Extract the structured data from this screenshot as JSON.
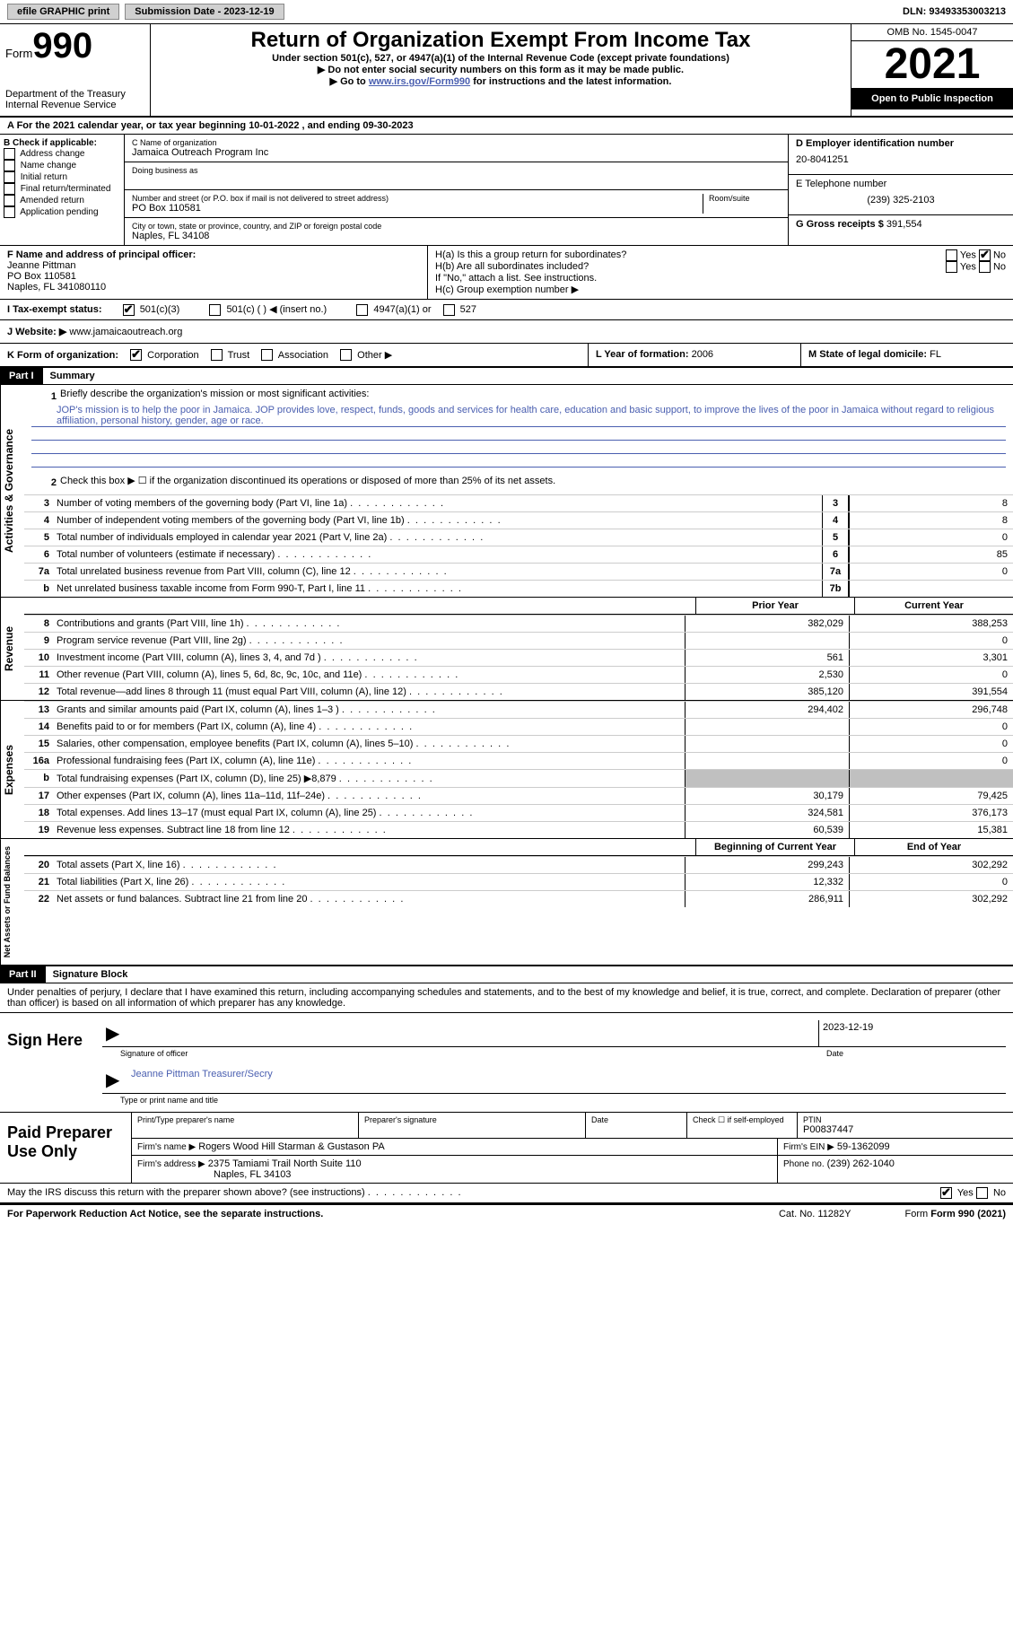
{
  "topbar": {
    "efile": "efile GRAPHIC print",
    "sub_date_label": "Submission Date - 2023-12-19",
    "dln": "DLN: 93493353003213"
  },
  "header": {
    "form_label": "Form",
    "form_num": "990",
    "title": "Return of Organization Exempt From Income Tax",
    "subtitle": "Under section 501(c), 527, or 4947(a)(1) of the Internal Revenue Code (except private foundations)",
    "instr1": "▶ Do not enter social security numbers on this form as it may be made public.",
    "instr2_pre": "▶ Go to ",
    "instr2_link": "www.irs.gov/Form990",
    "instr2_post": " for instructions and the latest information.",
    "dept": "Department of the Treasury\nInternal Revenue Service",
    "omb": "OMB No. 1545-0047",
    "year": "2021",
    "inspect": "Open to Public Inspection"
  },
  "sectionA": {
    "text": "A For the 2021 calendar year, or tax year beginning 10-01-2022   , and ending 09-30-2023"
  },
  "sectionB": {
    "heading": "B Check if applicable:",
    "items": [
      "Address change",
      "Name change",
      "Initial return",
      "Final return/terminated",
      "Amended return",
      "Application pending"
    ]
  },
  "sectionC": {
    "name_label": "C Name of organization",
    "name": "Jamaica Outreach Program Inc",
    "dba_label": "Doing business as",
    "street_label": "Number and street (or P.O. box if mail is not delivered to street address)",
    "room_label": "Room/suite",
    "street": "PO Box 110581",
    "city_label": "City or town, state or province, country, and ZIP or foreign postal code",
    "city": "Naples, FL  34108"
  },
  "sectionD": {
    "label": "D Employer identification number",
    "ein": "20-8041251",
    "phone_label": "E Telephone number",
    "phone": "(239) 325-2103",
    "gross_label": "G Gross receipts $",
    "gross": "391,554"
  },
  "sectionF": {
    "label": "F  Name and address of principal officer:",
    "name": "Jeanne Pittman",
    "street": "PO Box 110581",
    "city": "Naples, FL  341080110"
  },
  "sectionH": {
    "ha": "H(a)  Is this a group return for subordinates?",
    "hb": "H(b)  Are all subordinates included?",
    "hb_note": "If \"No,\" attach a list. See instructions.",
    "hc": "H(c)  Group exemption number ▶",
    "yes": "Yes",
    "no": "No"
  },
  "sectionI": {
    "label": "I   Tax-exempt status:",
    "opts": [
      "501(c)(3)",
      "501(c) (  ) ◀ (insert no.)",
      "4947(a)(1) or",
      "527"
    ]
  },
  "sectionJ": {
    "label": "J  Website: ▶",
    "url": "  www.jamaicaoutreach.org"
  },
  "sectionK": {
    "label": "K Form of organization:",
    "opts": [
      "Corporation",
      "Trust",
      "Association",
      "Other ▶"
    ],
    "l_label": "L Year of formation:",
    "l_val": "2006",
    "m_label": "M State of legal domicile:",
    "m_val": "FL"
  },
  "part1": {
    "header": "Part I",
    "title": "Summary",
    "line1": "Briefly describe the organization's mission or most significant activities:",
    "mission": "JOP's mission is to help the poor in Jamaica. JOP provides love, respect, funds, goods and services for health care, education and basic support, to improve the lives of the poor in Jamaica without regard to religious affiliation, personal history, gender, age or race.",
    "line2": "Check this box ▶ ☐  if the organization discontinued its operations or disposed of more than 25% of its net assets.",
    "side_act": "Activities & Governance",
    "side_rev": "Revenue",
    "side_exp": "Expenses",
    "side_net": "Net Assets or Fund Balances",
    "prior_year": "Prior Year",
    "current_year": "Current Year",
    "beg_year": "Beginning of Current Year",
    "end_year": "End of Year",
    "lines_gov": [
      {
        "n": "3",
        "d": "Number of voting members of the governing body (Part VI, line 1a)",
        "box": "3",
        "v": "8"
      },
      {
        "n": "4",
        "d": "Number of independent voting members of the governing body (Part VI, line 1b)",
        "box": "4",
        "v": "8"
      },
      {
        "n": "5",
        "d": "Total number of individuals employed in calendar year 2021 (Part V, line 2a)",
        "box": "5",
        "v": "0"
      },
      {
        "n": "6",
        "d": "Total number of volunteers (estimate if necessary)",
        "box": "6",
        "v": "85"
      },
      {
        "n": "7a",
        "d": "Total unrelated business revenue from Part VIII, column (C), line 12",
        "box": "7a",
        "v": "0"
      },
      {
        "n": "b",
        "d": "Net unrelated business taxable income from Form 990-T, Part I, line 11",
        "box": "7b",
        "v": ""
      }
    ],
    "lines_rev": [
      {
        "n": "8",
        "d": "Contributions and grants (Part VIII, line 1h)",
        "p": "382,029",
        "c": "388,253"
      },
      {
        "n": "9",
        "d": "Program service revenue (Part VIII, line 2g)",
        "p": "",
        "c": "0"
      },
      {
        "n": "10",
        "d": "Investment income (Part VIII, column (A), lines 3, 4, and 7d )",
        "p": "561",
        "c": "3,301"
      },
      {
        "n": "11",
        "d": "Other revenue (Part VIII, column (A), lines 5, 6d, 8c, 9c, 10c, and 11e)",
        "p": "2,530",
        "c": "0"
      },
      {
        "n": "12",
        "d": "Total revenue—add lines 8 through 11 (must equal Part VIII, column (A), line 12)",
        "p": "385,120",
        "c": "391,554"
      }
    ],
    "lines_exp": [
      {
        "n": "13",
        "d": "Grants and similar amounts paid (Part IX, column (A), lines 1–3 )",
        "p": "294,402",
        "c": "296,748"
      },
      {
        "n": "14",
        "d": "Benefits paid to or for members (Part IX, column (A), line 4)",
        "p": "",
        "c": "0"
      },
      {
        "n": "15",
        "d": "Salaries, other compensation, employee benefits (Part IX, column (A), lines 5–10)",
        "p": "",
        "c": "0"
      },
      {
        "n": "16a",
        "d": "Professional fundraising fees (Part IX, column (A), line 11e)",
        "p": "",
        "c": "0"
      },
      {
        "n": "b",
        "d": "Total fundraising expenses (Part IX, column (D), line 25) ▶8,879",
        "p": "grey",
        "c": "grey"
      },
      {
        "n": "17",
        "d": "Other expenses (Part IX, column (A), lines 11a–11d, 11f–24e)",
        "p": "30,179",
        "c": "79,425"
      },
      {
        "n": "18",
        "d": "Total expenses. Add lines 13–17 (must equal Part IX, column (A), line 25)",
        "p": "324,581",
        "c": "376,173"
      },
      {
        "n": "19",
        "d": "Revenue less expenses. Subtract line 18 from line 12",
        "p": "60,539",
        "c": "15,381"
      }
    ],
    "lines_net": [
      {
        "n": "20",
        "d": "Total assets (Part X, line 16)",
        "p": "299,243",
        "c": "302,292"
      },
      {
        "n": "21",
        "d": "Total liabilities (Part X, line 26)",
        "p": "12,332",
        "c": "0"
      },
      {
        "n": "22",
        "d": "Net assets or fund balances. Subtract line 21 from line 20",
        "p": "286,911",
        "c": "302,292"
      }
    ]
  },
  "part2": {
    "header": "Part II",
    "title": "Signature Block",
    "perjury": "Under penalties of perjury, I declare that I have examined this return, including accompanying schedules and statements, and to the best of my knowledge and belief, it is true, correct, and complete. Declaration of preparer (other than officer) is based on all information of which preparer has any knowledge.",
    "sign_here": "Sign Here",
    "sig_officer": "Signature of officer",
    "date_label": "Date",
    "date_val": "2023-12-19",
    "name_title": "Jeanne Pittman  Treasurer/Secry",
    "name_title_label": "Type or print name and title",
    "paid": "Paid Preparer Use Only",
    "prep_name_label": "Print/Type preparer's name",
    "prep_sig_label": "Preparer's signature",
    "check_self": "Check ☐ if self-employed",
    "ptin_label": "PTIN",
    "ptin": "P00837447",
    "firm_name_label": "Firm's name    ▶",
    "firm_name": "Rogers Wood Hill Starman & Gustason PA",
    "firm_ein_label": "Firm's EIN ▶",
    "firm_ein": "59-1362099",
    "firm_addr_label": "Firm's address ▶",
    "firm_addr1": "2375 Tamiami Trail North Suite 110",
    "firm_addr2": "Naples, FL  34103",
    "phone_label": "Phone no.",
    "phone": "(239) 262-1040",
    "discuss": "May the IRS discuss this return with the preparer shown above? (see instructions)",
    "yes": "Yes",
    "no": "No"
  },
  "footer": {
    "paperwork": "For Paperwork Reduction Act Notice, see the separate instructions.",
    "cat": "Cat. No. 11282Y",
    "form": "Form 990 (2021)"
  }
}
